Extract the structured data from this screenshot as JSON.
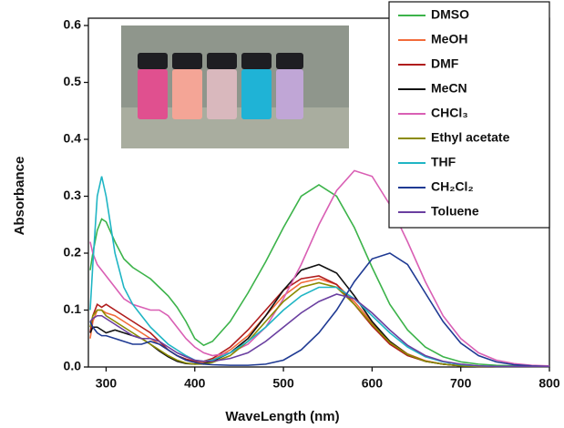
{
  "chart_data": {
    "type": "line",
    "x_label": "WaveLength (nm)",
    "y_label": "Absorbance",
    "x": [
      282,
      285,
      290,
      295,
      300,
      310,
      320,
      330,
      340,
      350,
      360,
      370,
      380,
      390,
      400,
      410,
      420,
      440,
      460,
      480,
      500,
      520,
      540,
      560,
      580,
      600,
      620,
      640,
      660,
      680,
      700,
      720,
      740,
      760,
      780,
      800
    ],
    "xlim": [
      280,
      800
    ],
    "xticks": [
      300,
      400,
      500,
      600,
      700,
      800
    ],
    "ylim": [
      0,
      0.6
    ],
    "yticks": [
      {
        "value": 0,
        "label": "0.0"
      },
      0.1,
      0.2,
      0.3,
      0.4,
      0.5,
      0.6
    ],
    "grid": false,
    "legend": "upper right",
    "series": [
      {
        "name": "DMSO",
        "color": "#3cb34a",
        "values": [
          0.17,
          0.2,
          0.24,
          0.26,
          0.255,
          0.22,
          0.19,
          0.175,
          0.165,
          0.155,
          0.14,
          0.125,
          0.105,
          0.08,
          0.05,
          0.038,
          0.045,
          0.08,
          0.13,
          0.185,
          0.245,
          0.3,
          0.32,
          0.3,
          0.245,
          0.175,
          0.11,
          0.065,
          0.035,
          0.018,
          0.009,
          0.005,
          0.003,
          0.002,
          0.001,
          0.001
        ]
      },
      {
        "name": "MeOH",
        "color": "#f26b3a",
        "values": [
          0.05,
          0.08,
          0.1,
          0.1,
          0.095,
          0.09,
          0.08,
          0.07,
          0.06,
          0.05,
          0.04,
          0.03,
          0.02,
          0.012,
          0.008,
          0.008,
          0.012,
          0.03,
          0.055,
          0.09,
          0.125,
          0.148,
          0.155,
          0.145,
          0.115,
          0.078,
          0.045,
          0.023,
          0.011,
          0.005,
          0.002,
          0.001,
          0.001,
          0.001,
          0.001,
          0.001
        ]
      },
      {
        "name": "DMF",
        "color": "#b01c1c",
        "values": [
          0.06,
          0.09,
          0.11,
          0.105,
          0.11,
          0.1,
          0.09,
          0.08,
          0.07,
          0.06,
          0.045,
          0.03,
          0.02,
          0.014,
          0.01,
          0.01,
          0.015,
          0.035,
          0.065,
          0.1,
          0.135,
          0.155,
          0.16,
          0.145,
          0.11,
          0.072,
          0.04,
          0.02,
          0.01,
          0.005,
          0.002,
          0.001,
          0.001,
          0.001,
          0.001,
          0.001
        ]
      },
      {
        "name": "MeCN",
        "color": "#111111",
        "values": [
          0.06,
          0.07,
          0.07,
          0.065,
          0.06,
          0.065,
          0.06,
          0.055,
          0.05,
          0.04,
          0.028,
          0.018,
          0.01,
          0.006,
          0.005,
          0.006,
          0.01,
          0.025,
          0.05,
          0.09,
          0.135,
          0.17,
          0.18,
          0.165,
          0.125,
          0.08,
          0.045,
          0.022,
          0.01,
          0.005,
          0.002,
          0.001,
          0.001,
          0.001,
          0.001,
          0.001
        ]
      },
      {
        "name": "CHCl₃",
        "color": "#d95fb4",
        "values": [
          0.22,
          0.2,
          0.18,
          0.17,
          0.16,
          0.14,
          0.12,
          0.11,
          0.105,
          0.1,
          0.1,
          0.09,
          0.07,
          0.05,
          0.035,
          0.025,
          0.02,
          0.025,
          0.04,
          0.07,
          0.12,
          0.18,
          0.25,
          0.31,
          0.345,
          0.335,
          0.285,
          0.22,
          0.15,
          0.09,
          0.05,
          0.025,
          0.012,
          0.006,
          0.003,
          0.002
        ]
      },
      {
        "name": "Ethyl acetate",
        "color": "#8b8b00",
        "values": [
          0.07,
          0.09,
          0.1,
          0.1,
          0.09,
          0.08,
          0.07,
          0.06,
          0.05,
          0.04,
          0.03,
          0.02,
          0.012,
          0.007,
          0.005,
          0.005,
          0.008,
          0.02,
          0.045,
          0.08,
          0.115,
          0.14,
          0.148,
          0.14,
          0.11,
          0.075,
          0.043,
          0.022,
          0.01,
          0.005,
          0.002,
          0.001,
          0.001,
          0.001,
          0.001,
          0.001
        ]
      },
      {
        "name": "THF",
        "color": "#1fb5c4",
        "values": [
          0.1,
          0.18,
          0.3,
          0.335,
          0.3,
          0.2,
          0.14,
          0.11,
          0.09,
          0.07,
          0.055,
          0.04,
          0.03,
          0.02,
          0.012,
          0.01,
          0.012,
          0.025,
          0.045,
          0.07,
          0.1,
          0.125,
          0.14,
          0.14,
          0.12,
          0.09,
          0.06,
          0.035,
          0.018,
          0.009,
          0.004,
          0.002,
          0.001,
          0.001,
          0.001,
          0.001
        ]
      },
      {
        "name": "CH₂Cl₂",
        "color": "#1f3a93",
        "values": [
          0.08,
          0.07,
          0.06,
          0.055,
          0.055,
          0.05,
          0.045,
          0.04,
          0.04,
          0.045,
          0.04,
          0.03,
          0.02,
          0.012,
          0.008,
          0.005,
          0.004,
          0.003,
          0.003,
          0.005,
          0.012,
          0.03,
          0.06,
          0.1,
          0.15,
          0.19,
          0.2,
          0.18,
          0.13,
          0.08,
          0.042,
          0.02,
          0.009,
          0.004,
          0.002,
          0.001
        ]
      },
      {
        "name": "Toluene",
        "color": "#6a3fa0",
        "values": [
          0.08,
          0.085,
          0.09,
          0.09,
          0.085,
          0.075,
          0.065,
          0.055,
          0.05,
          0.05,
          0.045,
          0.035,
          0.025,
          0.018,
          0.012,
          0.01,
          0.01,
          0.015,
          0.025,
          0.045,
          0.07,
          0.095,
          0.115,
          0.128,
          0.12,
          0.095,
          0.065,
          0.038,
          0.02,
          0.01,
          0.005,
          0.002,
          0.001,
          0.001,
          0.001,
          0.001
        ]
      }
    ]
  }
}
